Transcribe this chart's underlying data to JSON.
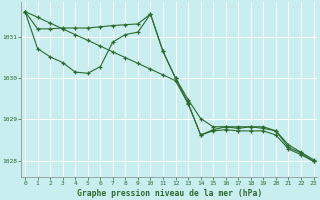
{
  "title": "Graphe pression niveau de la mer (hPa)",
  "background_color": "#c8eef0",
  "grid_color": "#ffffff",
  "line_color": "#2d6a2d",
  "xlim": [
    -0.3,
    23.3
  ],
  "ylim": [
    1027.6,
    1031.85
  ],
  "yticks": [
    1028,
    1029,
    1030,
    1031
  ],
  "xticks": [
    0,
    1,
    2,
    3,
    4,
    5,
    6,
    7,
    8,
    9,
    10,
    11,
    12,
    13,
    14,
    15,
    16,
    17,
    18,
    19,
    20,
    21,
    22,
    23
  ],
  "series1_x": [
    0,
    1,
    2,
    3,
    4,
    5,
    6,
    7,
    8,
    9,
    10,
    11,
    12,
    13,
    14,
    15,
    16,
    17,
    18,
    19,
    20,
    21,
    22,
    23
  ],
  "series1_y": [
    1031.62,
    1031.2,
    1031.2,
    1031.22,
    1031.22,
    1031.22,
    1031.25,
    1031.28,
    1031.3,
    1031.32,
    1031.56,
    1030.65,
    1030.0,
    1029.48,
    1029.02,
    1028.82,
    1028.82,
    1028.82,
    1028.82,
    1028.82,
    1028.72,
    1028.38,
    1028.2,
    1028.02
  ],
  "series2_x": [
    0,
    1,
    2,
    3,
    4,
    5,
    6,
    7,
    8,
    9,
    10,
    11,
    12,
    13,
    14,
    15,
    16,
    17,
    18,
    19,
    20,
    21,
    22,
    23
  ],
  "series2_y": [
    1031.62,
    1030.72,
    1030.52,
    1030.38,
    1030.15,
    1030.12,
    1030.28,
    1030.88,
    1031.06,
    1031.12,
    1031.56,
    1030.65,
    1030.0,
    1029.4,
    1028.62,
    1028.75,
    1028.82,
    1028.78,
    1028.82,
    1028.78,
    1028.72,
    1028.32,
    1028.18,
    1027.98
  ],
  "series3_x": [
    0,
    1,
    2,
    3,
    4,
    5,
    6,
    7,
    8,
    9,
    10,
    11,
    12,
    13,
    14,
    15,
    16,
    17,
    18,
    19,
    20,
    21,
    22,
    23
  ],
  "series3_y": [
    1031.62,
    1031.48,
    1031.34,
    1031.2,
    1031.06,
    1030.92,
    1030.78,
    1030.64,
    1030.5,
    1030.36,
    1030.22,
    1030.08,
    1029.94,
    1029.38,
    1028.62,
    1028.72,
    1028.75,
    1028.72,
    1028.72,
    1028.72,
    1028.62,
    1028.28,
    1028.14,
    1027.98
  ]
}
